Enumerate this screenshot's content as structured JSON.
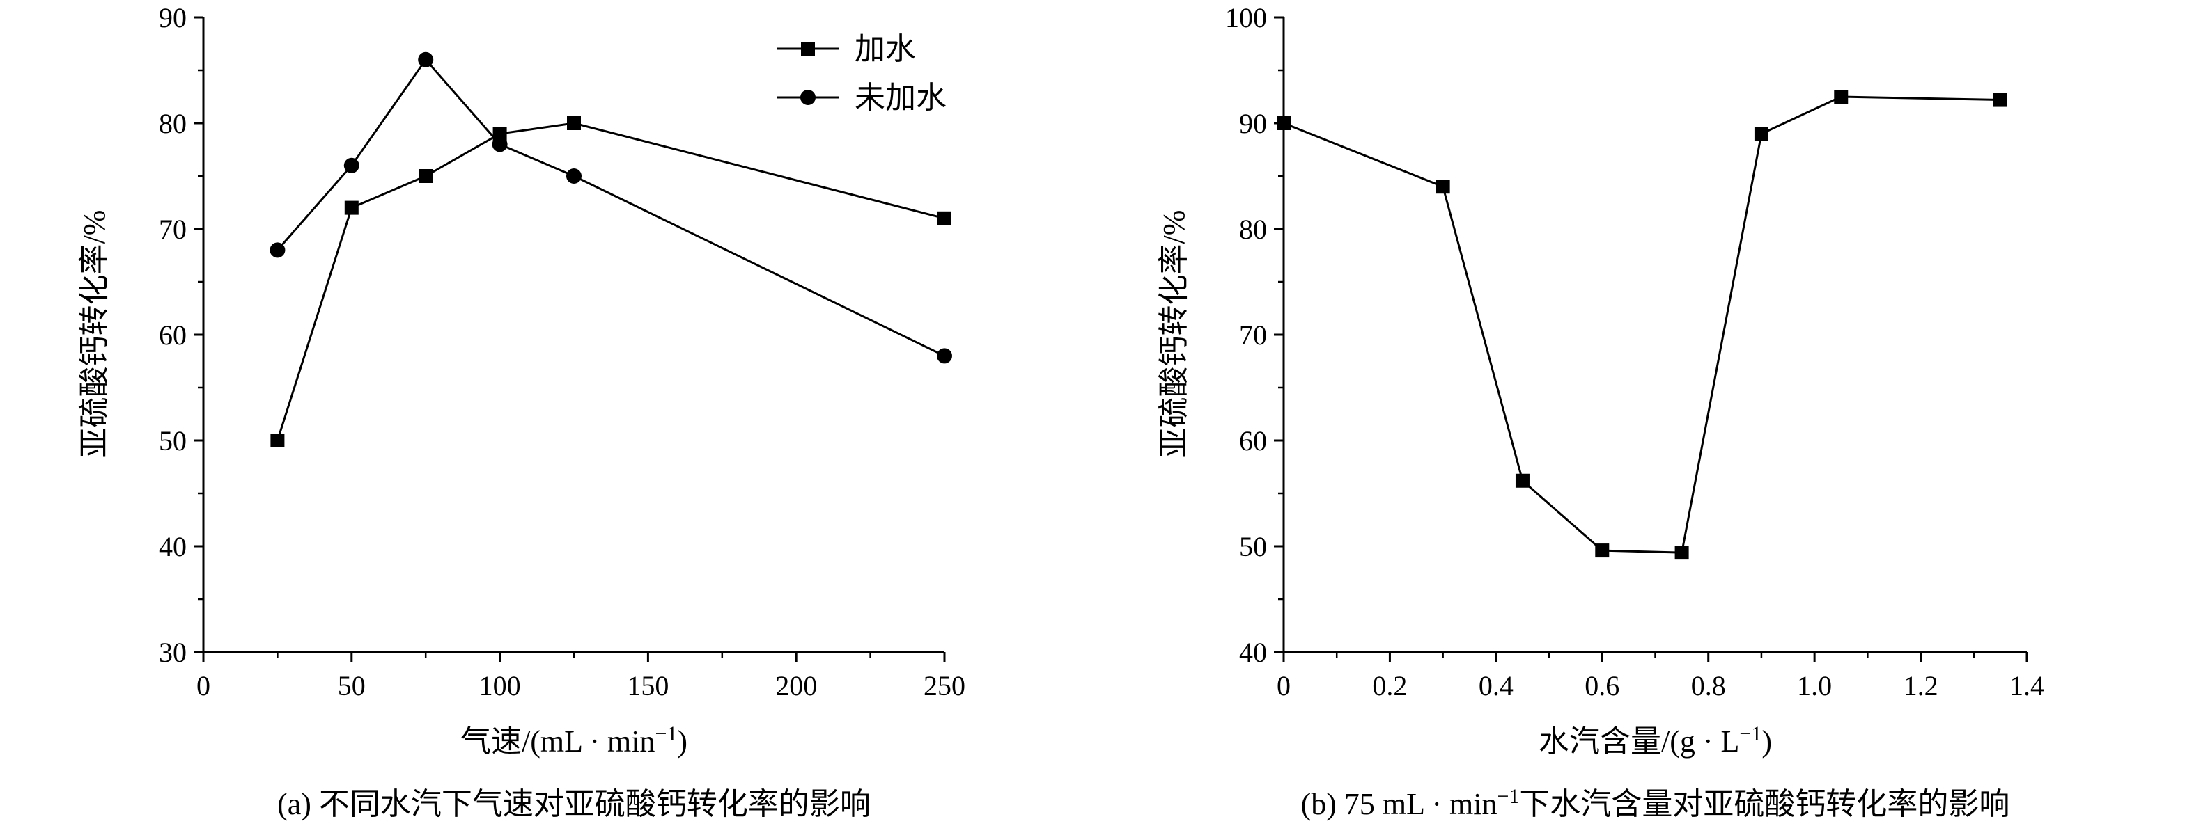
{
  "chart_data": [
    {
      "type": "line",
      "title": "",
      "caption": "(a) 不同水汽下气速对亚硫酸钙转化率的影响",
      "xlabel": "气速/(mL · min⁻¹)",
      "ylabel": "亚硫酸钙转化率/%",
      "xlim": [
        0,
        250
      ],
      "ylim": [
        30,
        90
      ],
      "xticks": [
        0,
        50,
        100,
        150,
        200,
        250
      ],
      "yticks": [
        30,
        40,
        50,
        60,
        70,
        80,
        90
      ],
      "legend_position": "top-right",
      "series": [
        {
          "name": "加水",
          "marker": "square",
          "x": [
            25,
            50,
            75,
            100,
            125,
            250
          ],
          "values": [
            50,
            72,
            75,
            79,
            80,
            71
          ]
        },
        {
          "name": "未加水",
          "marker": "circle",
          "x": [
            25,
            50,
            75,
            100,
            125,
            250
          ],
          "values": [
            68,
            76,
            86,
            78,
            75,
            58
          ]
        }
      ]
    },
    {
      "type": "line",
      "title": "",
      "caption": "(b) 75 mL · min⁻¹下水汽含量对亚硫酸钙转化率的影响",
      "xlabel": "水汽含量/(g · L⁻¹)",
      "ylabel": "亚硫酸钙转化率/%",
      "xlim": [
        0,
        1.4
      ],
      "ylim": [
        40,
        100
      ],
      "xticks": [
        0,
        0.2,
        0.4,
        0.6,
        0.8,
        1.0,
        1.2,
        1.4
      ],
      "yticks": [
        40,
        50,
        60,
        70,
        80,
        90,
        100
      ],
      "xtick_labels": [
        "0",
        "0.2",
        "0.4",
        "0.6",
        "0.8",
        "1.0",
        "1.2",
        "1.4"
      ],
      "series": [
        {
          "marker": "square",
          "x": [
            0,
            0.3,
            0.45,
            0.6,
            0.75,
            0.9,
            1.05,
            1.35
          ],
          "values": [
            90,
            84,
            56.2,
            49.6,
            49.4,
            89,
            92.5,
            92.2
          ]
        }
      ]
    }
  ]
}
